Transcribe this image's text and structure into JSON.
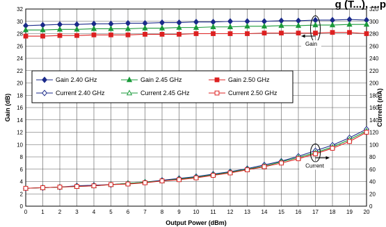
{
  "chart_data": {
    "type": "line",
    "title": "g (T...), ...p",
    "xlabel": "Output Power (dBm)",
    "ylabel": "Gain (dB)",
    "y2label": "Current (mA)",
    "xlim": [
      0,
      20
    ],
    "ylim": [
      0,
      32
    ],
    "y2lim": [
      0,
      320
    ],
    "x_ticks": [
      0,
      1,
      2,
      3,
      4,
      5,
      6,
      7,
      8,
      9,
      10,
      11,
      12,
      13,
      14,
      15,
      16,
      17,
      18,
      19,
      20
    ],
    "y_ticks": [
      0,
      2,
      4,
      6,
      8,
      10,
      12,
      14,
      16,
      18,
      20,
      22,
      24,
      26,
      28,
      30,
      32
    ],
    "y2_ticks": [
      0,
      20,
      40,
      60,
      80,
      100,
      120,
      140,
      160,
      180,
      200,
      220,
      240,
      260,
      280,
      300,
      320
    ],
    "grid": true,
    "legend_position": "center-left",
    "x": [
      0,
      1,
      2,
      3,
      4,
      5,
      6,
      7,
      8,
      9,
      10,
      11,
      12,
      13,
      14,
      15,
      16,
      17,
      18,
      19,
      20
    ],
    "series": [
      {
        "name": "Gain 2.40 GHz",
        "axis": "left",
        "color": "#1a2a8a",
        "marker": "diamond-filled",
        "values": [
          29.3,
          29.4,
          29.5,
          29.5,
          29.6,
          29.6,
          29.7,
          29.7,
          29.8,
          29.8,
          29.9,
          29.9,
          30.0,
          30.0,
          30.0,
          30.1,
          30.1,
          30.2,
          30.2,
          30.3,
          30.2
        ]
      },
      {
        "name": "Gain 2.45 GHz",
        "axis": "left",
        "color": "#1a9a3a",
        "marker": "triangle-filled",
        "values": [
          28.6,
          28.6,
          28.7,
          28.7,
          28.8,
          28.8,
          28.8,
          28.9,
          28.9,
          29.0,
          29.0,
          29.1,
          29.1,
          29.2,
          29.2,
          29.3,
          29.3,
          29.4,
          29.4,
          29.5,
          29.5
        ]
      },
      {
        "name": "Gain 2.50 GHz",
        "axis": "left",
        "color": "#dd2020",
        "marker": "square-filled",
        "values": [
          27.6,
          27.6,
          27.7,
          27.7,
          27.8,
          27.8,
          27.8,
          27.9,
          27.9,
          27.9,
          28.0,
          28.0,
          28.0,
          28.0,
          28.1,
          28.1,
          28.1,
          28.1,
          28.2,
          28.2,
          28.0
        ]
      },
      {
        "name": "Current 2.40 GHz",
        "axis": "right",
        "color": "#1a2a8a",
        "marker": "diamond-open",
        "values": [
          29,
          30,
          31,
          33,
          34,
          35,
          37,
          39,
          42,
          45,
          48,
          52,
          56,
          61,
          67,
          73,
          81,
          90,
          99,
          111,
          125
        ]
      },
      {
        "name": "Current 2.45 GHz",
        "axis": "right",
        "color": "#1a9a3a",
        "marker": "triangle-open",
        "values": [
          29,
          30,
          31,
          32,
          33,
          35,
          37,
          39,
          41,
          44,
          47,
          51,
          55,
          60,
          65,
          72,
          79,
          87,
          96,
          108,
          122
        ]
      },
      {
        "name": "Current 2.50 GHz",
        "axis": "right",
        "color": "#dd2020",
        "marker": "square-open",
        "values": [
          29,
          30,
          31,
          32,
          33,
          35,
          36,
          38,
          41,
          43,
          46,
          50,
          54,
          59,
          64,
          70,
          77,
          85,
          94,
          105,
          120
        ]
      }
    ],
    "annotations": [
      {
        "label": "Gain",
        "x": 17,
        "y": 27.2,
        "axis": "left",
        "arrow": "left"
      },
      {
        "label": "Current",
        "x": 17,
        "y": 82,
        "axis": "right",
        "arrow": "right"
      }
    ]
  }
}
